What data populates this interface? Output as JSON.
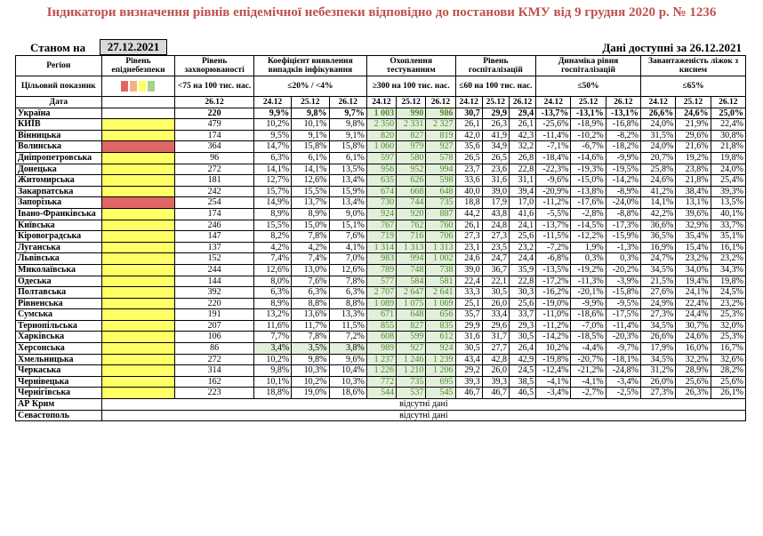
{
  "title": "Індикатори визначення рівнів епідемічної небезпеки відповідно до постанови КМУ від 9 грудня 2020 р. № 1236",
  "as_of_label": "Станом на",
  "as_of_date": "27.12.2021",
  "data_available": "Дані доступні за 26.12.2021",
  "header": {
    "region": "Регіон",
    "target": "Цільовий показник",
    "date": "Дата",
    "level": "Рівень епіднебезпеки",
    "incidence": "Рівень захворюваності",
    "incidence_target": "<75 на 100 тис. нас.",
    "positivity": "Коефіцієнт виявлення випадків інфікування",
    "positivity_target": "≤20% / <4%",
    "testing": "Охоплення тестуванням",
    "testing_target": "≥300 на 100 тис. нас.",
    "hosp": "Рівень госпіталізацій",
    "hosp_target": "≤60 на 100 тис. нас.",
    "hosp_dyn": "Динаміка рівня госпіталізацій",
    "hosp_dyn_target": "≤50%",
    "beds": "Завантаженість ліжок з киснем",
    "beds_target": "≤65%",
    "d_2612": "26.12",
    "d_2412": "24.12",
    "d_2512": "25.12"
  },
  "level_colors": {
    "yellow": "#ffff66",
    "red": "#e06666",
    "orange": "#f4b183",
    "green": "#a9d18e"
  },
  "rows": [
    {
      "region": "Україна",
      "level": "",
      "inc": "220",
      "p1": "9,9%",
      "p2": "9,8%",
      "p3": "9,7%",
      "t1": "1 003",
      "t2": "990",
      "t3": "986",
      "h1": "30,7",
      "h2": "29,9",
      "h3": "29,4",
      "d1": "-13,7%",
      "d2": "-13,1%",
      "d3": "-13,1%",
      "b1": "26,6%",
      "b2": "24,6%",
      "b3": "25,0%",
      "bold": true
    },
    {
      "region": "КИЇВ",
      "level": "yellow",
      "inc": "479",
      "p1": "10,2%",
      "p2": "10,1%",
      "p3": "9,8%",
      "t1": "2 350",
      "t2": "2 331",
      "t3": "2 327",
      "h1": "26,1",
      "h2": "26,3",
      "h3": "26,1",
      "d1": "-25,6%",
      "d2": "-18,9%",
      "d3": "-16,8%",
      "b1": "24,0%",
      "b2": "21,9%",
      "b3": "22,4%"
    },
    {
      "region": "Вінницька",
      "level": "yellow",
      "inc": "174",
      "p1": "9,5%",
      "p2": "9,1%",
      "p3": "9,1%",
      "t1": "820",
      "t2": "827",
      "t3": "819",
      "h1": "42,0",
      "h2": "41,9",
      "h3": "42,3",
      "d1": "-11,4%",
      "d2": "-10,2%",
      "d3": "-8,2%",
      "b1": "31,5%",
      "b2": "29,6%",
      "b3": "30,8%"
    },
    {
      "region": "Волинська",
      "level": "red",
      "inc": "364",
      "p1": "14,7%",
      "p2": "15,8%",
      "p3": "15,8%",
      "t1": "1 060",
      "t2": "979",
      "t3": "927",
      "h1": "35,6",
      "h2": "34,9",
      "h3": "32,2",
      "d1": "-7,1%",
      "d2": "-6,7%",
      "d3": "-18,2%",
      "b1": "24,0%",
      "b2": "21,6%",
      "b3": "21,8%"
    },
    {
      "region": "Дніпропетровська",
      "level": "yellow",
      "inc": "96",
      "p1": "6,3%",
      "p2": "6,1%",
      "p3": "6,1%",
      "t1": "597",
      "t2": "580",
      "t3": "578",
      "h1": "26,5",
      "h2": "26,5",
      "h3": "26,8",
      "d1": "-18,4%",
      "d2": "-14,6%",
      "d3": "-9,9%",
      "b1": "20,7%",
      "b2": "19,2%",
      "b3": "19,8%"
    },
    {
      "region": "Донецька",
      "level": "yellow",
      "inc": "272",
      "p1": "14,1%",
      "p2": "14,1%",
      "p3": "13,5%",
      "t1": "956",
      "t2": "952",
      "t3": "994",
      "h1": "23,7",
      "h2": "23,6",
      "h3": "22,8",
      "d1": "-22,3%",
      "d2": "-19,3%",
      "d3": "-19,5%",
      "b1": "25,8%",
      "b2": "23,8%",
      "b3": "24,0%"
    },
    {
      "region": "Житомирська",
      "level": "yellow",
      "inc": "181",
      "p1": "12,7%",
      "p2": "12,6%",
      "p3": "13,4%",
      "t1": "635",
      "t2": "626",
      "t3": "598",
      "h1": "33,6",
      "h2": "31,6",
      "h3": "31,1",
      "d1": "-9,6%",
      "d2": "-15,0%",
      "d3": "-14,2%",
      "b1": "24,6%",
      "b2": "21,8%",
      "b3": "25,4%"
    },
    {
      "region": "Закарпатська",
      "level": "yellow",
      "inc": "242",
      "p1": "15,7%",
      "p2": "15,5%",
      "p3": "15,9%",
      "t1": "674",
      "t2": "668",
      "t3": "648",
      "h1": "40,0",
      "h2": "39,0",
      "h3": "39,4",
      "d1": "-20,9%",
      "d2": "-13,8%",
      "d3": "-8,9%",
      "b1": "41,2%",
      "b2": "38,4%",
      "b3": "39,3%"
    },
    {
      "region": "Запорізька",
      "level": "red",
      "inc": "254",
      "p1": "14,9%",
      "p2": "13,7%",
      "p3": "13,4%",
      "t1": "730",
      "t2": "744",
      "t3": "735",
      "h1": "18,8",
      "h2": "17,9",
      "h3": "17,0",
      "d1": "-11,2%",
      "d2": "-17,6%",
      "d3": "-24,0%",
      "b1": "14,1%",
      "b2": "13,1%",
      "b3": "13,5%"
    },
    {
      "region": "Івано-Франківська",
      "level": "yellow",
      "inc": "174",
      "p1": "8,9%",
      "p2": "8,9%",
      "p3": "9,0%",
      "t1": "924",
      "t2": "920",
      "t3": "887",
      "h1": "44,2",
      "h2": "43,8",
      "h3": "41,6",
      "d1": "-5,5%",
      "d2": "-2,8%",
      "d3": "-8,8%",
      "b1": "42,2%",
      "b2": "39,6%",
      "b3": "40,1%",
      "tall": true
    },
    {
      "region": "Київська",
      "level": "yellow",
      "inc": "246",
      "p1": "15,5%",
      "p2": "15,0%",
      "p3": "15,1%",
      "t1": "767",
      "t2": "762",
      "t3": "760",
      "h1": "26,1",
      "h2": "24,8",
      "h3": "24,1",
      "d1": "-13,7%",
      "d2": "-14,5%",
      "d3": "-17,3%",
      "b1": "36,6%",
      "b2": "32,9%",
      "b3": "33,7%"
    },
    {
      "region": "Кіровоградська",
      "level": "yellow",
      "inc": "147",
      "p1": "8,2%",
      "p2": "7,8%",
      "p3": "7,6%",
      "t1": "719",
      "t2": "716",
      "t3": "706",
      "h1": "27,3",
      "h2": "27,3",
      "h3": "25,6",
      "d1": "-11,5%",
      "d2": "-12,2%",
      "d3": "-15,9%",
      "b1": "36,5%",
      "b2": "35,4%",
      "b3": "35,1%"
    },
    {
      "region": "Луганська",
      "level": "yellow",
      "inc": "137",
      "p1": "4,2%",
      "p2": "4,2%",
      "p3": "4,1%",
      "t1": "1 314",
      "t2": "1 313",
      "t3": "1 313",
      "h1": "23,1",
      "h2": "23,5",
      "h3": "23,2",
      "d1": "-7,2%",
      "d2": "1,9%",
      "d3": "-1,3%",
      "b1": "16,9%",
      "b2": "15,4%",
      "b3": "16,1%"
    },
    {
      "region": "Львівська",
      "level": "yellow",
      "inc": "152",
      "p1": "7,4%",
      "p2": "7,4%",
      "p3": "7,0%",
      "t1": "983",
      "t2": "994",
      "t3": "1 002",
      "h1": "24,6",
      "h2": "24,7",
      "h3": "24,4",
      "d1": "-6,8%",
      "d2": "0,3%",
      "d3": "0,3%",
      "b1": "24,7%",
      "b2": "23,2%",
      "b3": "23,2%"
    },
    {
      "region": "Миколаївська",
      "level": "yellow",
      "inc": "244",
      "p1": "12,6%",
      "p2": "13,0%",
      "p3": "12,6%",
      "t1": "789",
      "t2": "748",
      "t3": "738",
      "h1": "39,0",
      "h2": "36,7",
      "h3": "35,9",
      "d1": "-13,5%",
      "d2": "-19,2%",
      "d3": "-20,2%",
      "b1": "34,5%",
      "b2": "34,0%",
      "b3": "34,3%"
    },
    {
      "region": "Одеська",
      "level": "yellow",
      "inc": "144",
      "p1": "8,0%",
      "p2": "7,6%",
      "p3": "7,8%",
      "t1": "577",
      "t2": "584",
      "t3": "581",
      "h1": "22,4",
      "h2": "22,1",
      "h3": "22,8",
      "d1": "-17,2%",
      "d2": "-11,3%",
      "d3": "-3,9%",
      "b1": "21,5%",
      "b2": "19,4%",
      "b3": "19,8%"
    },
    {
      "region": "Полтавська",
      "level": "yellow",
      "inc": "392",
      "p1": "6,3%",
      "p2": "6,3%",
      "p3": "6,3%",
      "t1": "2 707",
      "t2": "2 647",
      "t3": "2 641",
      "h1": "33,3",
      "h2": "30,5",
      "h3": "30,3",
      "d1": "-16,2%",
      "d2": "-20,1%",
      "d3": "-15,8%",
      "b1": "27,6%",
      "b2": "24,1%",
      "b3": "24,5%"
    },
    {
      "region": "Рівненська",
      "level": "yellow",
      "inc": "220",
      "p1": "8,9%",
      "p2": "8,8%",
      "p3": "8,8%",
      "t1": "1 089",
      "t2": "1 075",
      "t3": "1 069",
      "h1": "25,1",
      "h2": "26,0",
      "h3": "25,6",
      "d1": "-19,0%",
      "d2": "-9,9%",
      "d3": "-9,5%",
      "b1": "24,9%",
      "b2": "22,4%",
      "b3": "23,2%"
    },
    {
      "region": "Сумська",
      "level": "yellow",
      "inc": "191",
      "p1": "13,2%",
      "p2": "13,6%",
      "p3": "13,3%",
      "t1": "671",
      "t2": "648",
      "t3": "656",
      "h1": "35,7",
      "h2": "33,4",
      "h3": "33,7",
      "d1": "-11,0%",
      "d2": "-18,6%",
      "d3": "-17,5%",
      "b1": "27,3%",
      "b2": "24,4%",
      "b3": "25,3%"
    },
    {
      "region": "Тернопільська",
      "level": "yellow",
      "inc": "207",
      "p1": "11,6%",
      "p2": "11,7%",
      "p3": "11,5%",
      "t1": "855",
      "t2": "827",
      "t3": "835",
      "h1": "29,9",
      "h2": "29,6",
      "h3": "29,3",
      "d1": "-11,2%",
      "d2": "-7,0%",
      "d3": "-11,4%",
      "b1": "34,5%",
      "b2": "30,7%",
      "b3": "32,0%"
    },
    {
      "region": "Харківська",
      "level": "yellow",
      "inc": "106",
      "p1": "7,7%",
      "p2": "7,8%",
      "p3": "7,2%",
      "t1": "608",
      "t2": "599",
      "t3": "612",
      "h1": "31,6",
      "h2": "31,7",
      "h3": "30,5",
      "d1": "-14,2%",
      "d2": "-18,5%",
      "d3": "-20,3%",
      "b1": "26,6%",
      "b2": "24,6%",
      "b3": "25,3%"
    },
    {
      "region": "Херсонська",
      "level": "yellow",
      "inc": "86",
      "p1": "3,4%",
      "p2": "3,5%",
      "p3": "3,8%",
      "t1": "989",
      "t2": "927",
      "t3": "924",
      "h1": "30,5",
      "h2": "27,7",
      "h3": "26,4",
      "d1": "10,2%",
      "d2": "-4,4%",
      "d3": "-9,7%",
      "b1": "17,9%",
      "b2": "16,0%",
      "b3": "16,7%",
      "pgreen": true
    },
    {
      "region": "Хмельницька",
      "level": "yellow",
      "inc": "272",
      "p1": "10,2%",
      "p2": "9,8%",
      "p3": "9,6%",
      "t1": "1 237",
      "t2": "1 246",
      "t3": "1 239",
      "h1": "43,4",
      "h2": "42,8",
      "h3": "42,9",
      "d1": "-19,8%",
      "d2": "-20,7%",
      "d3": "-18,1%",
      "b1": "34,5%",
      "b2": "32,2%",
      "b3": "32,6%"
    },
    {
      "region": "Черкаська",
      "level": "yellow",
      "inc": "314",
      "p1": "9,8%",
      "p2": "10,3%",
      "p3": "10,4%",
      "t1": "1 226",
      "t2": "1 210",
      "t3": "1 206",
      "h1": "29,2",
      "h2": "26,0",
      "h3": "24,5",
      "d1": "-12,4%",
      "d2": "-21,2%",
      "d3": "-24,8%",
      "b1": "31,2%",
      "b2": "28,9%",
      "b3": "28,2%"
    },
    {
      "region": "Чернівецька",
      "level": "yellow",
      "inc": "162",
      "p1": "10,1%",
      "p2": "10,2%",
      "p3": "10,3%",
      "t1": "772",
      "t2": "735",
      "t3": "695",
      "h1": "39,3",
      "h2": "39,3",
      "h3": "38,5",
      "d1": "-4,1%",
      "d2": "-4,1%",
      "d3": "-3,4%",
      "b1": "26,0%",
      "b2": "25,6%",
      "b3": "25,6%"
    },
    {
      "region": "Чернігівська",
      "level": "yellow",
      "inc": "223",
      "p1": "18,8%",
      "p2": "19,0%",
      "p3": "18,6%",
      "t1": "544",
      "t2": "537",
      "t3": "545",
      "h1": "46,7",
      "h2": "46,7",
      "h3": "46,5",
      "d1": "-3,4%",
      "d2": "-2,7%",
      "d3": "-2,5%",
      "b1": "27,3%",
      "b2": "26,3%",
      "b3": "26,1%"
    }
  ],
  "missing_rows": [
    {
      "region": "АР Крим",
      "text": "відсутні дані"
    },
    {
      "region": "Севастополь",
      "text": "відсутні дані"
    }
  ]
}
